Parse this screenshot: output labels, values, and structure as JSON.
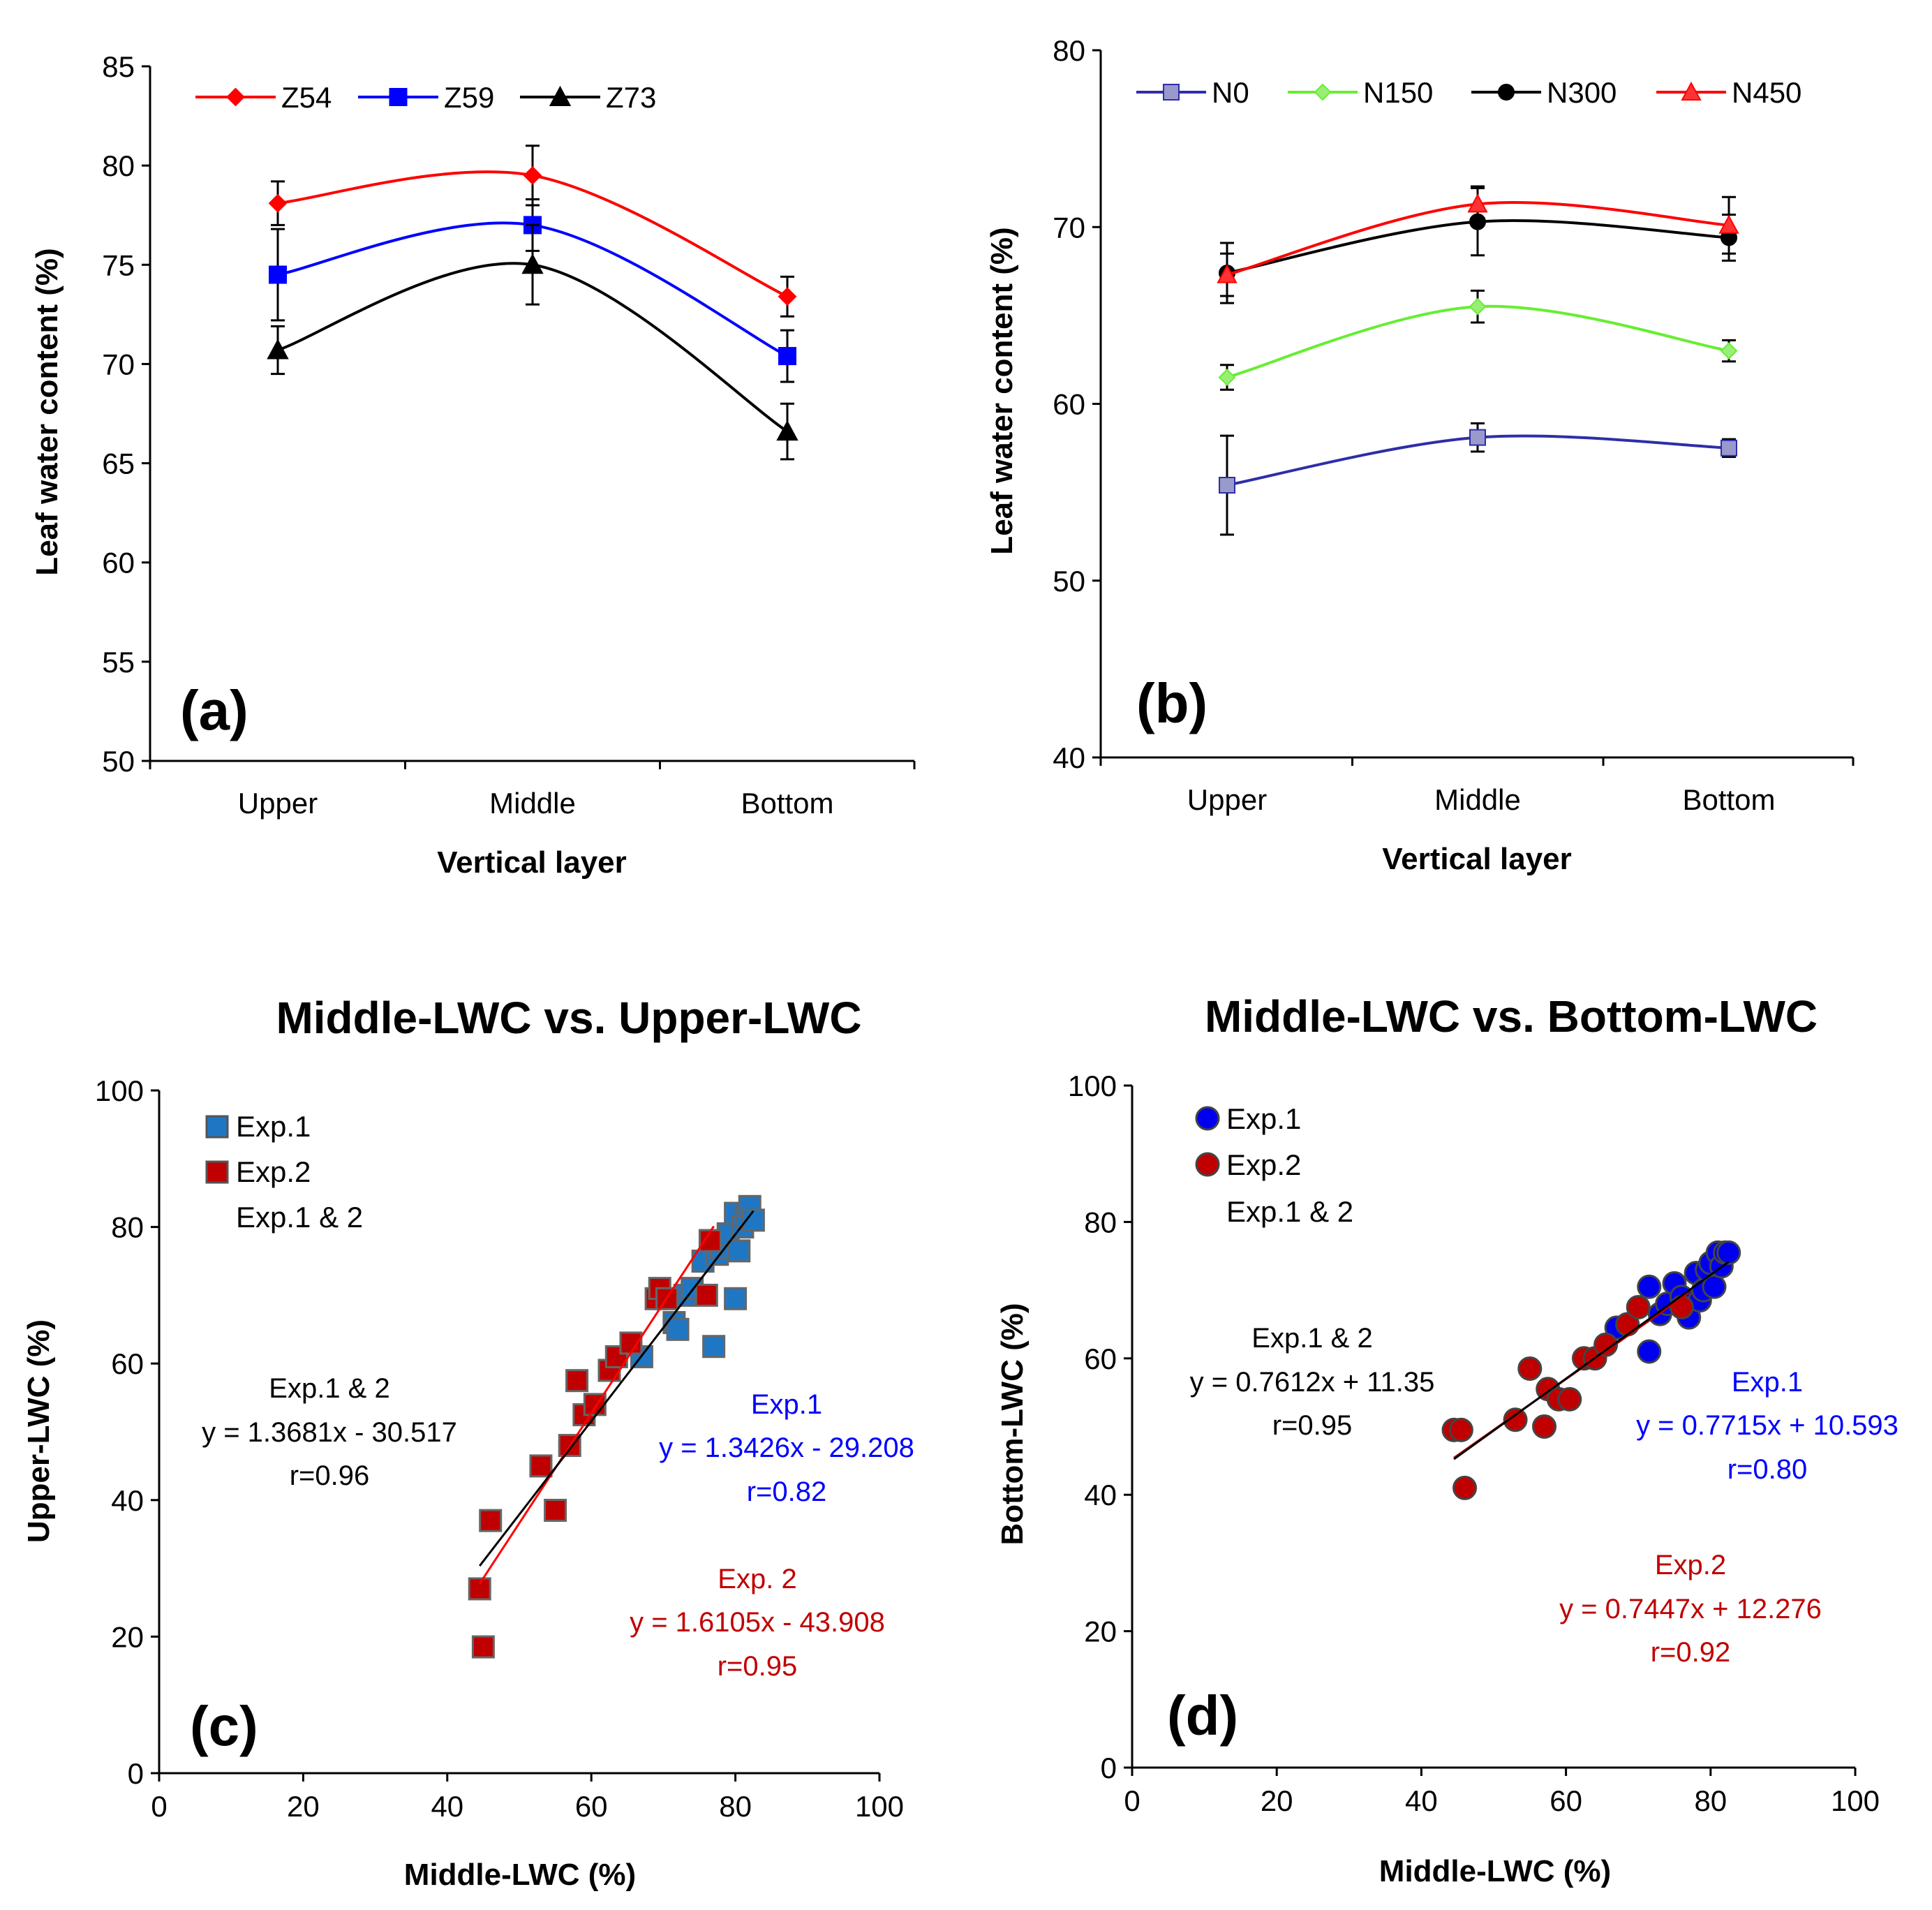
{
  "chart_data": [
    {
      "id": "a",
      "type": "line",
      "panel_label": "(a)",
      "xlabel": "Vertical layer",
      "ylabel": "Leaf water content (%)",
      "categories": [
        "Upper",
        "Middle",
        "Bottom"
      ],
      "ylim": [
        50,
        85
      ],
      "yticks": [
        50,
        55,
        60,
        65,
        70,
        75,
        80,
        85
      ],
      "legend_position": "top-left",
      "series": [
        {
          "name": "Z54",
          "color": "#ff0000",
          "marker": "diamond",
          "values": [
            78.1,
            79.5,
            73.4
          ],
          "errors": [
            1.1,
            1.5,
            1.0
          ]
        },
        {
          "name": "Z59",
          "color": "#0000ff",
          "marker": "square",
          "values": [
            74.5,
            77.0,
            70.4
          ],
          "errors": [
            2.3,
            1.3,
            1.3
          ]
        },
        {
          "name": "Z73",
          "color": "#000000",
          "marker": "triangle",
          "values": [
            70.7,
            75.0,
            66.6
          ],
          "errors": [
            1.2,
            2.0,
            1.4
          ]
        }
      ]
    },
    {
      "id": "b",
      "type": "line",
      "panel_label": "(b)",
      "xlabel": "Vertical layer",
      "ylabel": "Leaf water content (%)",
      "categories": [
        "Upper",
        "Middle",
        "Bottom"
      ],
      "ylim": [
        40,
        80
      ],
      "yticks": [
        40,
        50,
        60,
        70,
        80
      ],
      "legend_position": "top",
      "series": [
        {
          "name": "N0",
          "color": "#2e2ea8",
          "fill": "#9999cc",
          "marker": "square",
          "values": [
            55.4,
            58.1,
            57.5
          ],
          "errors": [
            2.8,
            0.8,
            0.5
          ]
        },
        {
          "name": "N150",
          "color": "#66ee33",
          "fill": "#99ee77",
          "marker": "diamond",
          "values": [
            61.5,
            65.5,
            63.0
          ],
          "errors": [
            0.7,
            0.9,
            0.6
          ]
        },
        {
          "name": "N300",
          "color": "#000000",
          "fill": "#000000",
          "marker": "circle",
          "values": [
            67.4,
            70.3,
            69.4
          ],
          "errors": [
            1.7,
            1.9,
            1.3
          ]
        },
        {
          "name": "N450",
          "color": "#ff0000",
          "fill": "#ff3333",
          "marker": "triangle",
          "values": [
            67.3,
            71.3,
            70.1
          ],
          "errors": [
            1.2,
            1.0,
            1.6
          ]
        }
      ]
    },
    {
      "id": "c",
      "type": "scatter",
      "panel_label": "(c)",
      "title": "Middle-LWC vs. Upper-LWC",
      "xlabel": "Middle-LWC (%)",
      "ylabel": "Upper-LWC (%)",
      "xlim": [
        0,
        100
      ],
      "ylim": [
        0,
        100
      ],
      "xticks": [
        0,
        20,
        40,
        60,
        80,
        100
      ],
      "yticks": [
        0,
        20,
        40,
        60,
        80,
        100
      ],
      "legend_position": "top-left",
      "legend": [
        "Exp.1",
        "Exp.2",
        "Exp.1 & 2"
      ],
      "series": [
        {
          "name": "Exp.1",
          "color": "#1f77c4",
          "marker": "square",
          "points": [
            [
              67,
              61
            ],
            [
              71.5,
              66
            ],
            [
              72,
              65
            ],
            [
              73,
              70
            ],
            [
              74,
              71
            ],
            [
              75.5,
              75
            ],
            [
              76.5,
              78
            ],
            [
              77,
              62.5
            ],
            [
              77.5,
              76
            ],
            [
              78,
              77
            ],
            [
              79,
              79
            ],
            [
              80,
              69.5
            ],
            [
              80,
              82
            ],
            [
              80.5,
              76.5
            ],
            [
              81,
              80
            ],
            [
              81.5,
              81.5
            ],
            [
              82,
              83
            ],
            [
              82.5,
              81
            ]
          ]
        },
        {
          "name": "Exp.2",
          "color": "#c00000",
          "marker": "square",
          "points": [
            [
              44.5,
              27
            ],
            [
              45,
              18.5
            ],
            [
              46,
              37
            ],
            [
              53,
              45
            ],
            [
              55,
              38.5
            ],
            [
              57,
              48
            ],
            [
              58,
              57.5
            ],
            [
              59,
              52.5
            ],
            [
              60.5,
              54
            ],
            [
              62.5,
              59
            ],
            [
              63.5,
              61
            ],
            [
              65.5,
              63
            ],
            [
              69,
              69.5
            ],
            [
              69.5,
              71
            ],
            [
              70.5,
              69.5
            ],
            [
              76,
              70
            ],
            [
              76.5,
              78
            ]
          ]
        }
      ],
      "fits": [
        {
          "name": "Exp.1 & 2",
          "color": "#000000",
          "slope": 1.3681,
          "intercept": -30.517,
          "x_range": [
            44.5,
            82.5
          ]
        },
        {
          "name": "Exp. 2",
          "color": "#ff0000",
          "slope": 1.6105,
          "intercept": -43.908,
          "x_range": [
            44.5,
            77
          ]
        }
      ],
      "annotations": [
        {
          "lines": [
            "Exp.1 & 2",
            "y = 1.3681x - 30.517",
            "r=0.96"
          ],
          "color": "#000000"
        },
        {
          "lines": [
            "Exp.1",
            "y = 1.3426x - 29.208",
            "r=0.82"
          ],
          "color": "#0000ff"
        },
        {
          "lines": [
            "Exp. 2",
            "y = 1.6105x - 43.908",
            "r=0.95"
          ],
          "color": "#c00000"
        }
      ]
    },
    {
      "id": "d",
      "type": "scatter",
      "panel_label": "(d)",
      "title": "Middle-LWC vs. Bottom-LWC",
      "xlabel": "Middle-LWC (%)",
      "ylabel": "Bottom-LWC (%)",
      "xlim": [
        0,
        100
      ],
      "ylim": [
        0,
        100
      ],
      "xticks": [
        0,
        20,
        40,
        60,
        80,
        100
      ],
      "yticks": [
        0,
        20,
        40,
        60,
        80,
        100
      ],
      "legend_position": "top-left",
      "legend": [
        "Exp.1",
        "Exp.2",
        "Exp.1 & 2"
      ],
      "series": [
        {
          "name": "Exp.1",
          "color": "#0000ee",
          "marker": "circle",
          "points": [
            [
              67,
              64.5
            ],
            [
              71.5,
              61
            ],
            [
              71.5,
              70.5
            ],
            [
              73,
              66.5
            ],
            [
              74,
              68
            ],
            [
              75,
              71
            ],
            [
              76,
              69
            ],
            [
              77,
              66
            ],
            [
              78,
              72.5
            ],
            [
              78.5,
              68.5
            ],
            [
              79,
              70
            ],
            [
              79.5,
              73
            ],
            [
              80,
              74
            ],
            [
              80.5,
              70.5
            ],
            [
              81,
              75.5
            ],
            [
              81.5,
              73.5
            ],
            [
              82,
              75.5
            ],
            [
              82.5,
              75.5
            ]
          ]
        },
        {
          "name": "Exp.2",
          "color": "#c00000",
          "marker": "circle",
          "points": [
            [
              44.5,
              49.5
            ],
            [
              45.5,
              49.5
            ],
            [
              46,
              41
            ],
            [
              53,
              51
            ],
            [
              55,
              58.5
            ],
            [
              57,
              50
            ],
            [
              57.5,
              55.5
            ],
            [
              59,
              54
            ],
            [
              60.5,
              54
            ],
            [
              62.5,
              60
            ],
            [
              64,
              60
            ],
            [
              65.5,
              62
            ],
            [
              68.5,
              65
            ],
            [
              70,
              67.5
            ],
            [
              76,
              67.5
            ]
          ]
        }
      ],
      "fits": [
        {
          "name": "Exp.1 & 2",
          "color": "#000000",
          "slope": 0.7612,
          "intercept": 11.35,
          "x_range": [
            44.5,
            82.5
          ]
        },
        {
          "name": "Exp.2",
          "color": "#c00000",
          "slope": 0.7447,
          "intercept": 12.276,
          "x_range": [
            44.5,
            77
          ]
        }
      ],
      "annotations": [
        {
          "lines": [
            "Exp.1 & 2",
            "y = 0.7612x + 11.35",
            "r=0.95"
          ],
          "color": "#000000"
        },
        {
          "lines": [
            "Exp.1",
            "y = 0.7715x + 10.593",
            "r=0.80"
          ],
          "color": "#0000ff"
        },
        {
          "lines": [
            "Exp.2",
            "y = 0.7447x + 12.276",
            "r=0.92"
          ],
          "color": "#c00000"
        }
      ]
    }
  ]
}
